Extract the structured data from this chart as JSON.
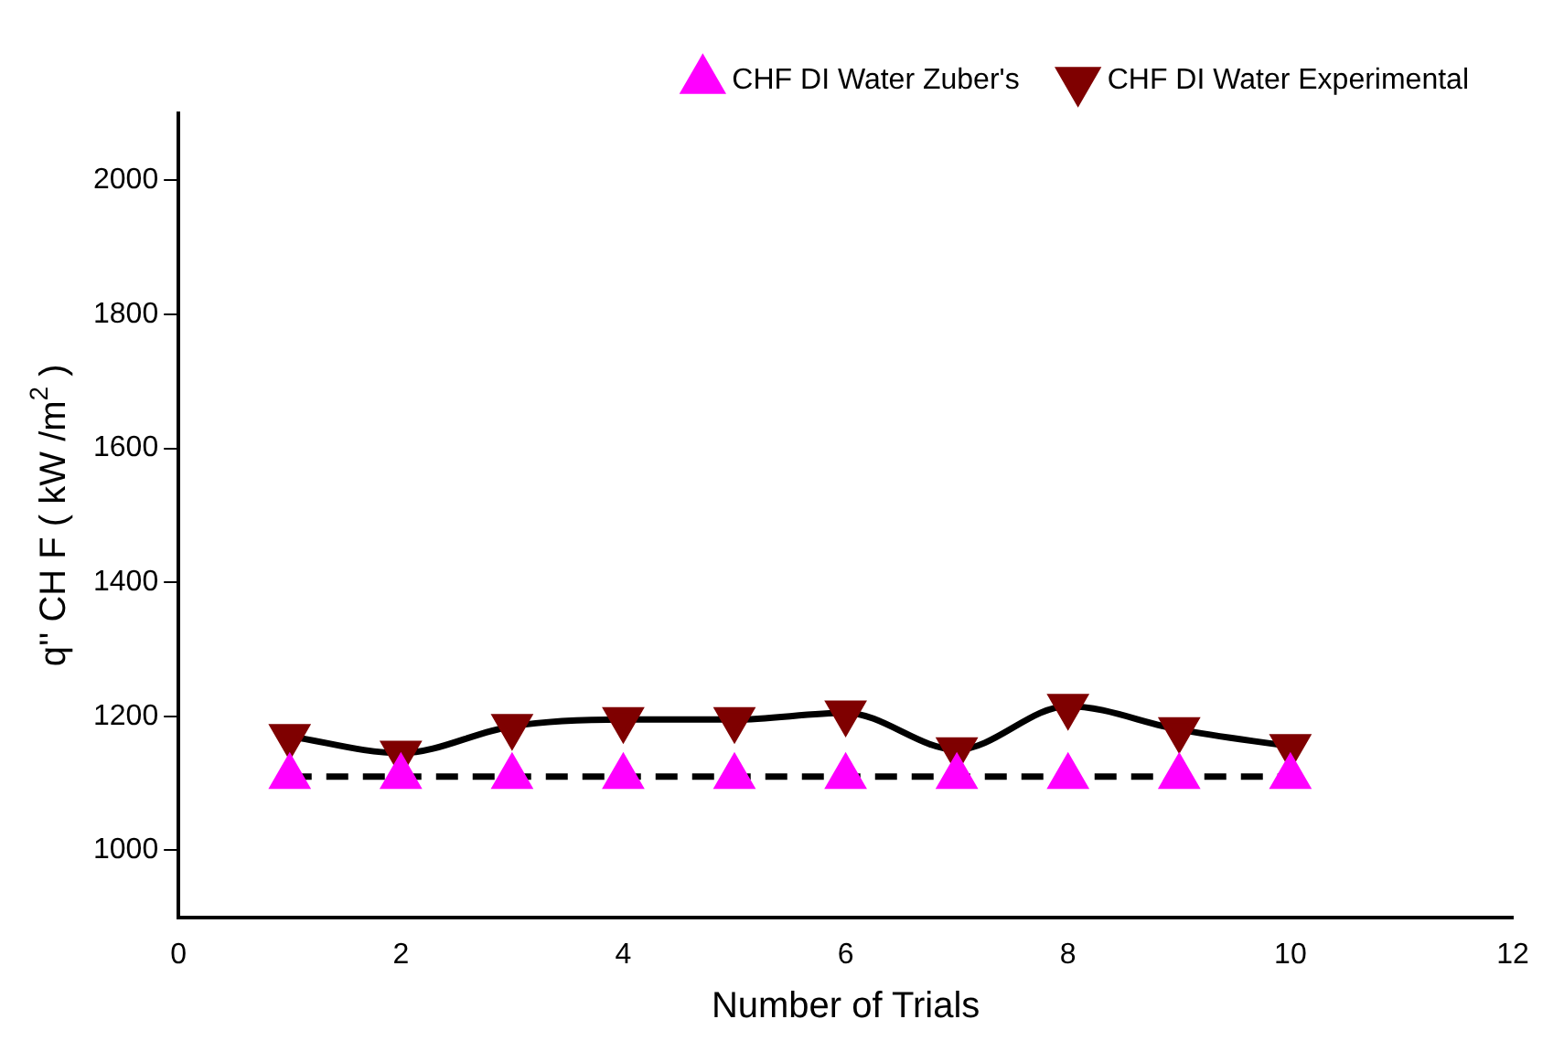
{
  "chart_data": {
    "type": "line",
    "xlabel": "Number of Trials",
    "ylabel": "q'' CH F ( kW /m$^{2}$ )",
    "x": [
      1,
      2,
      3,
      4,
      5,
      6,
      7,
      8,
      9,
      10
    ],
    "xlim": [
      0,
      12
    ],
    "xticks": [
      0,
      2,
      4,
      6,
      8,
      10,
      12
    ],
    "ylim": [
      900,
      2100
    ],
    "yticks": [
      1000,
      1200,
      1400,
      1600,
      1800,
      2000
    ],
    "grid": false,
    "legend": "top right",
    "series": [
      {
        "name": "CHF DI Water Zuber's",
        "color": "#ff00ff",
        "line_style": "dashed",
        "marker": "triangle",
        "values": [
          1110,
          1110,
          1110,
          1110,
          1110,
          1110,
          1110,
          1110,
          1110,
          1110
        ]
      },
      {
        "name": "CHF DI Water Experimental",
        "color": "#7f0000",
        "line_style": "solid",
        "marker": "triangle_down",
        "values": [
          1170,
          1145,
          1185,
          1195,
          1195,
          1205,
          1150,
          1215,
          1180,
          1155
        ]
      }
    ]
  }
}
